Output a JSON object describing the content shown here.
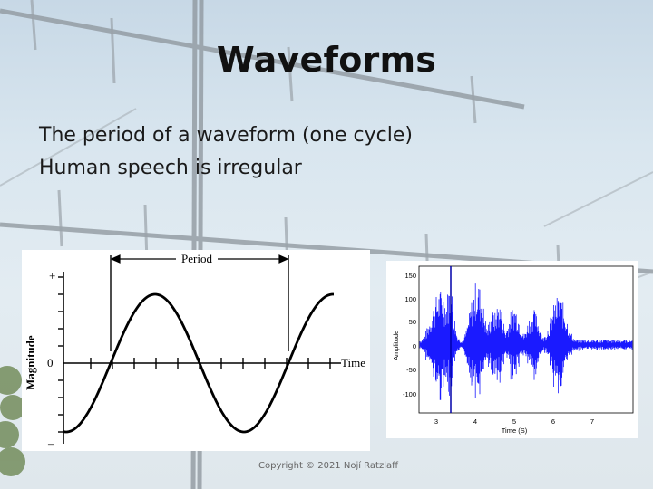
{
  "slide": {
    "title": "Waveforms",
    "bullets": [
      "The period of a waveform (one cycle)",
      "Human speech is irregular"
    ],
    "copyright": "Copyright © 2021 Nojí Ratzlaff"
  },
  "figure_left": {
    "period_label": "Period",
    "y_label": "Magnitude",
    "x_label": "Time",
    "plus_tick": "+",
    "zero_tick": "0",
    "minus_tick": "–"
  },
  "figure_right": {
    "y_label": "Amplitude",
    "x_label": "Time (S)",
    "y_ticks": [
      "150",
      "100",
      "50",
      "0",
      "-50",
      "-100"
    ],
    "x_ticks": [
      "3",
      "4",
      "5",
      "6",
      "7"
    ],
    "signal_color": "#1a1aff"
  }
}
